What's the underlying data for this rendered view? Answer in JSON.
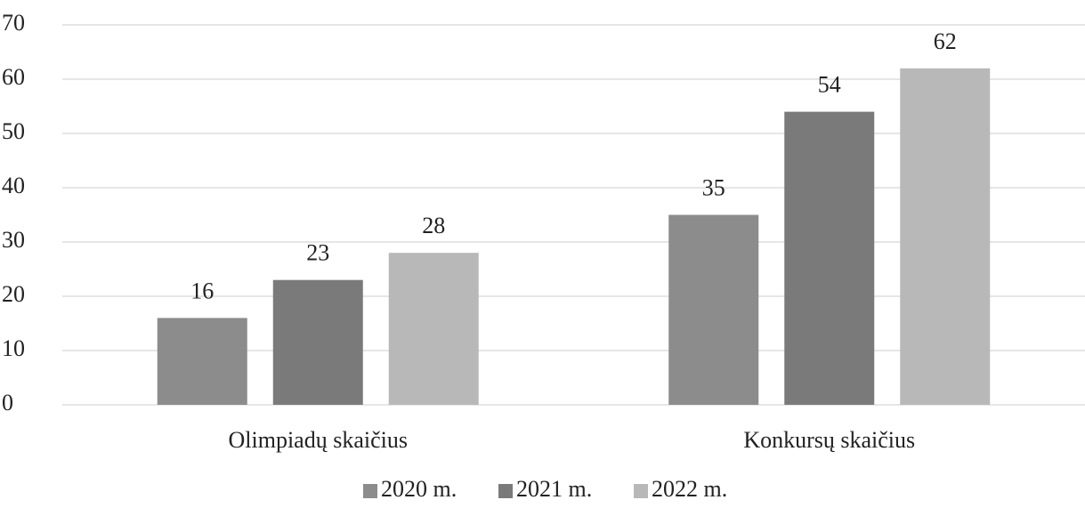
{
  "chart_data": {
    "type": "bar",
    "categories": [
      "Olimpiadų skaičius",
      "Konkursų skaičius"
    ],
    "series": [
      {
        "name": "2020 m.",
        "color": "#8c8c8c",
        "values": [
          16,
          35
        ]
      },
      {
        "name": "2021 m.",
        "color": "#7a7a7a",
        "values": [
          23,
          54
        ]
      },
      {
        "name": "2022 m.",
        "color": "#b8b8b8",
        "values": [
          28,
          62
        ]
      }
    ],
    "ylim": [
      0,
      70
    ],
    "yticks": [
      0,
      10,
      20,
      30,
      40,
      50,
      60,
      70
    ],
    "grid": true,
    "legend": "bottom"
  }
}
